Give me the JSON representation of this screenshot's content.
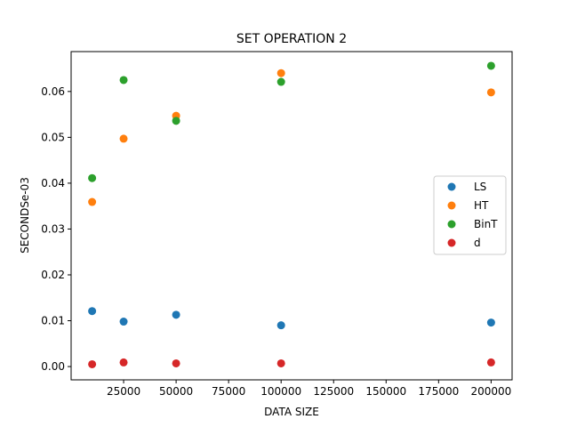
{
  "chart_data": {
    "type": "scatter",
    "title": "SET OPERATION 2",
    "xlabel": "DATA SIZE",
    "ylabel": "SECONDSe-03",
    "xlim": [
      0,
      210000
    ],
    "ylim": [
      -0.0029,
      0.0687
    ],
    "xticks": [
      25000,
      50000,
      75000,
      100000,
      125000,
      150000,
      175000,
      200000
    ],
    "xtick_labels": [
      "25000",
      "50000",
      "75000",
      "100000",
      "125000",
      "150000",
      "175000",
      "200000"
    ],
    "yticks": [
      0.0,
      0.01,
      0.02,
      0.03,
      0.04,
      0.05,
      0.06
    ],
    "ytick_labels": [
      "0.00",
      "0.01",
      "0.02",
      "0.03",
      "0.04",
      "0.05",
      "0.06"
    ],
    "grid": false,
    "legend_position": "center-right",
    "x": [
      10000,
      25000,
      50000,
      100000,
      200000
    ],
    "series": [
      {
        "name": "LS",
        "color": "#1f77b4",
        "values": [
          0.0121,
          0.0098,
          0.0113,
          0.009,
          0.0096
        ]
      },
      {
        "name": "HT",
        "color": "#ff7f0e",
        "values": [
          0.0359,
          0.0497,
          0.0547,
          0.064,
          0.0598
        ]
      },
      {
        "name": "BinT",
        "color": "#2ca02c",
        "values": [
          0.0411,
          0.0625,
          0.0536,
          0.0621,
          0.0656
        ]
      },
      {
        "name": "d",
        "color": "#d62728",
        "values": [
          0.0005,
          0.0009,
          0.0007,
          0.0007,
          0.0009
        ]
      }
    ]
  }
}
